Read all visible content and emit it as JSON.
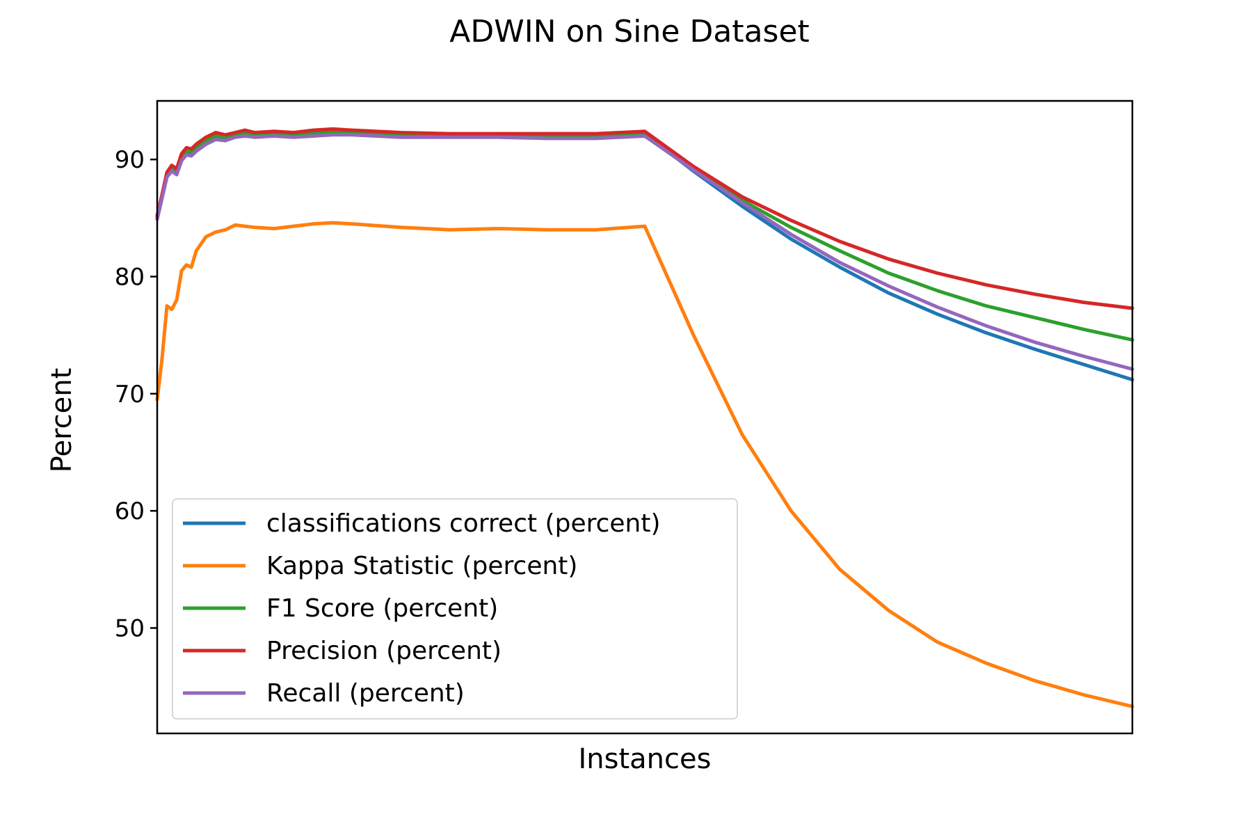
{
  "chart_data": {
    "type": "line",
    "title": "ADWIN on Sine Dataset",
    "xlabel": "Instances",
    "ylabel": "Percent",
    "xlim": [
      0,
      100
    ],
    "ylim": [
      41,
      95
    ],
    "yticks": [
      50,
      60,
      70,
      80,
      90
    ],
    "grid": false,
    "legend_position": "lower-left",
    "series": [
      {
        "name": "classifications correct (percent)",
        "color": "#1f77b4",
        "x": [
          0,
          0.5,
          1,
          1.5,
          2,
          2.5,
          3,
          3.5,
          4,
          5,
          6,
          7,
          8,
          9,
          10,
          12,
          14,
          16,
          18,
          20,
          25,
          30,
          35,
          40,
          45,
          50,
          55,
          60,
          65,
          70,
          75,
          80,
          85,
          90,
          95,
          100
        ],
        "values": [
          85.0,
          86.8,
          88.6,
          89.2,
          88.9,
          90.1,
          90.6,
          90.5,
          90.9,
          91.5,
          91.9,
          91.7,
          92.0,
          92.2,
          92.0,
          92.1,
          92.0,
          92.2,
          92.3,
          92.2,
          92.0,
          92.0,
          92.0,
          91.9,
          91.9,
          92.2,
          89.0,
          86.0,
          83.2,
          80.8,
          78.6,
          76.8,
          75.2,
          73.8,
          72.5,
          71.2
        ]
      },
      {
        "name": "Kappa Statistic (percent)",
        "color": "#ff7f0e",
        "x": [
          0,
          0.5,
          1,
          1.5,
          2,
          2.5,
          3,
          3.5,
          4,
          5,
          6,
          7,
          8,
          9,
          10,
          12,
          14,
          16,
          18,
          20,
          25,
          30,
          35,
          40,
          45,
          50,
          55,
          60,
          65,
          70,
          75,
          80,
          85,
          90,
          95,
          100
        ],
        "values": [
          69.5,
          73.0,
          77.5,
          77.2,
          78.0,
          80.5,
          81.0,
          80.8,
          82.2,
          83.4,
          83.8,
          84.0,
          84.4,
          84.3,
          84.2,
          84.1,
          84.3,
          84.5,
          84.6,
          84.5,
          84.2,
          84.0,
          84.1,
          84.0,
          84.0,
          84.3,
          75.0,
          66.5,
          60.0,
          55.0,
          51.5,
          48.8,
          47.0,
          45.5,
          44.3,
          43.3
        ]
      },
      {
        "name": "F1 Score (percent)",
        "color": "#2ca02c",
        "x": [
          0,
          0.5,
          1,
          1.5,
          2,
          2.5,
          3,
          3.5,
          4,
          5,
          6,
          7,
          8,
          9,
          10,
          12,
          14,
          16,
          18,
          20,
          25,
          30,
          35,
          40,
          45,
          50,
          55,
          60,
          65,
          70,
          75,
          80,
          85,
          90,
          95,
          100
        ],
        "values": [
          85.1,
          86.9,
          88.7,
          89.3,
          89.0,
          90.2,
          90.7,
          90.6,
          91.0,
          91.6,
          92.0,
          91.8,
          92.1,
          92.3,
          92.1,
          92.2,
          92.1,
          92.3,
          92.4,
          92.3,
          92.1,
          92.1,
          92.1,
          92.0,
          92.0,
          92.3,
          89.2,
          86.5,
          84.2,
          82.2,
          80.3,
          78.8,
          77.5,
          76.5,
          75.5,
          74.6
        ]
      },
      {
        "name": "Precision (percent)",
        "color": "#d62728",
        "x": [
          0,
          0.5,
          1,
          1.5,
          2,
          2.5,
          3,
          3.5,
          4,
          5,
          6,
          7,
          8,
          9,
          10,
          12,
          14,
          16,
          18,
          20,
          25,
          30,
          35,
          40,
          45,
          50,
          55,
          60,
          65,
          70,
          75,
          80,
          85,
          90,
          95,
          100
        ],
        "values": [
          85.2,
          87.0,
          88.9,
          89.5,
          89.2,
          90.5,
          91.0,
          90.9,
          91.3,
          91.9,
          92.3,
          92.1,
          92.3,
          92.5,
          92.3,
          92.4,
          92.3,
          92.5,
          92.6,
          92.5,
          92.3,
          92.2,
          92.2,
          92.2,
          92.2,
          92.4,
          89.4,
          86.8,
          84.8,
          83.0,
          81.5,
          80.3,
          79.3,
          78.5,
          77.8,
          77.3
        ]
      },
      {
        "name": "Recall (percent)",
        "color": "#9467bd",
        "x": [
          0,
          0.5,
          1,
          1.5,
          2,
          2.5,
          3,
          3.5,
          4,
          5,
          6,
          7,
          8,
          9,
          10,
          12,
          14,
          16,
          18,
          20,
          25,
          30,
          35,
          40,
          45,
          50,
          55,
          60,
          65,
          70,
          75,
          80,
          85,
          90,
          95,
          100
        ],
        "values": [
          84.9,
          86.7,
          88.5,
          89.0,
          88.7,
          89.9,
          90.4,
          90.3,
          90.7,
          91.3,
          91.7,
          91.6,
          91.9,
          92.0,
          91.9,
          92.0,
          91.9,
          92.0,
          92.1,
          92.1,
          91.9,
          91.9,
          91.9,
          91.8,
          91.8,
          92.0,
          89.1,
          86.3,
          83.6,
          81.2,
          79.2,
          77.4,
          75.8,
          74.4,
          73.2,
          72.1
        ]
      }
    ]
  }
}
